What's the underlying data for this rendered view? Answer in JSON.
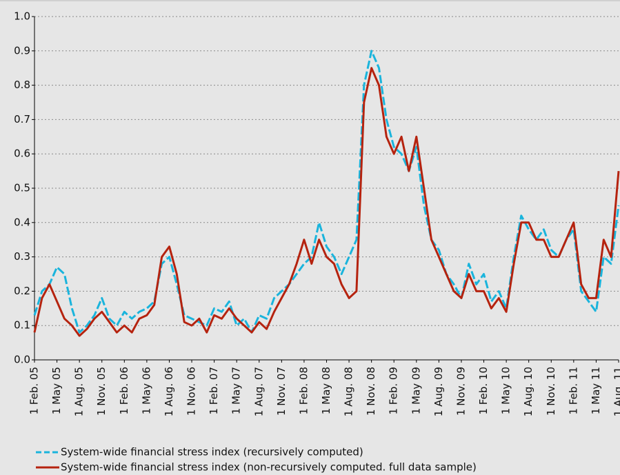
{
  "chart_data": {
    "type": "line",
    "categories": [
      "1 Feb. 05",
      null,
      null,
      "1 May 05",
      null,
      null,
      "1 Aug. 05",
      null,
      null,
      "1 Nov. 05",
      null,
      null,
      "1 Feb. 06",
      null,
      null,
      "1 May 06",
      null,
      null,
      "1 Aug. 06",
      null,
      null,
      "1 Nov. 06",
      null,
      null,
      "1 Feb. 07",
      null,
      null,
      "1 May 07",
      null,
      null,
      "1 Aug. 07",
      null,
      null,
      "1 Nov. 07",
      null,
      null,
      "1 Feb. 08",
      null,
      null,
      "1 May 08",
      null,
      null,
      "1 Aug. 08",
      null,
      null,
      "1 Nov. 08",
      null,
      null,
      "1 Feb. 09",
      null,
      null,
      "1 May 09",
      null,
      null,
      "1 Aug. 09",
      null,
      null,
      "1 Nov. 09",
      null,
      null,
      "1 Feb. 10",
      null,
      null,
      "1 May 10",
      null,
      null,
      "1 Aug. 10",
      null,
      null,
      "1 Nov. 10",
      null,
      null,
      "1 Feb. 11",
      null,
      null,
      "1 May 11",
      null,
      null,
      "1 Aug. 11"
    ],
    "series": [
      {
        "name": "System-wide financial stress index (recursively computed)",
        "color": "#1ab4dc",
        "line_style": "dashed",
        "values": [
          0.13,
          0.2,
          0.22,
          0.27,
          0.25,
          0.15,
          0.08,
          0.1,
          0.13,
          0.18,
          0.12,
          0.1,
          0.14,
          0.12,
          0.14,
          0.15,
          0.17,
          0.28,
          0.3,
          0.22,
          0.13,
          0.12,
          0.11,
          0.1,
          0.15,
          0.14,
          0.17,
          0.1,
          0.12,
          0.08,
          0.13,
          0.12,
          0.18,
          0.2,
          0.22,
          0.25,
          0.28,
          0.3,
          0.4,
          0.33,
          0.3,
          0.25,
          0.3,
          0.35,
          0.8,
          0.9,
          0.85,
          0.7,
          0.62,
          0.6,
          0.55,
          0.62,
          0.45,
          0.35,
          0.32,
          0.25,
          0.22,
          0.18,
          0.28,
          0.22,
          0.25,
          0.17,
          0.2,
          0.15,
          0.3,
          0.42,
          0.38,
          0.35,
          0.38,
          0.32,
          0.3,
          0.35,
          0.38,
          0.2,
          0.17,
          0.14,
          0.3,
          0.28,
          0.45
        ]
      },
      {
        "name": "System-wide financial stress index (non-recursively computed. full data sample)",
        "color": "#b5230f",
        "line_style": "solid",
        "values": [
          0.08,
          0.18,
          0.22,
          0.17,
          0.12,
          0.1,
          0.07,
          0.09,
          0.12,
          0.14,
          0.11,
          0.08,
          0.1,
          0.08,
          0.12,
          0.13,
          0.16,
          0.3,
          0.33,
          0.25,
          0.11,
          0.1,
          0.12,
          0.08,
          0.13,
          0.12,
          0.15,
          0.12,
          0.1,
          0.08,
          0.11,
          0.09,
          0.14,
          0.18,
          0.22,
          0.28,
          0.35,
          0.28,
          0.35,
          0.3,
          0.28,
          0.22,
          0.18,
          0.2,
          0.75,
          0.85,
          0.8,
          0.65,
          0.6,
          0.65,
          0.55,
          0.65,
          0.5,
          0.35,
          0.3,
          0.25,
          0.2,
          0.18,
          0.25,
          0.2,
          0.2,
          0.15,
          0.18,
          0.14,
          0.28,
          0.4,
          0.4,
          0.35,
          0.35,
          0.3,
          0.3,
          0.35,
          0.4,
          0.22,
          0.18,
          0.18,
          0.35,
          0.3,
          0.55
        ]
      }
    ],
    "ylim": [
      0,
      1
    ],
    "yticks": [
      {
        "value": 0,
        "label": "0.0"
      },
      0.1,
      0.2,
      0.3,
      0.4,
      0.5,
      0.6,
      0.7,
      0.8,
      0.9,
      {
        "value": 1,
        "label": "1.0"
      }
    ],
    "grid": true
  }
}
